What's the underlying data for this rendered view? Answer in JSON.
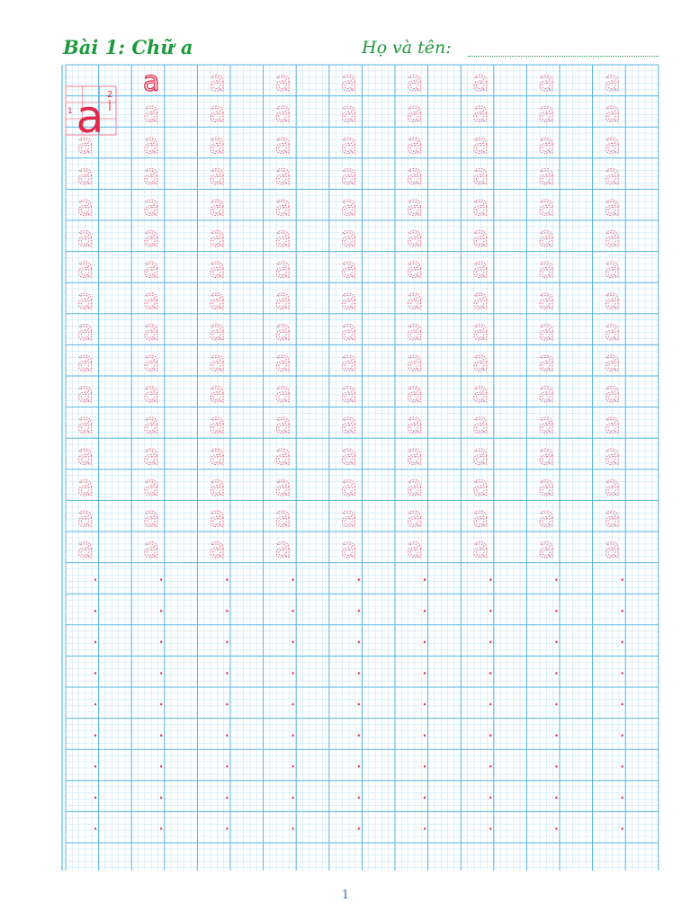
{
  "header": {
    "title": "Bài 1: Chữ a",
    "name_label": "Họ và tên:"
  },
  "worksheet": {
    "letter": "a",
    "model": {
      "letter": "a",
      "stroke_1": "1",
      "stroke_2": "2"
    },
    "letter_rows": 16,
    "dot_rows": 9,
    "columns": 9,
    "colors": {
      "grid_major": "#5ab4e0",
      "grid_minor": "#cfe9f6",
      "letter": "#e0284a",
      "trace": "#e86a84",
      "title": "#1f9a3e"
    }
  },
  "footer": {
    "page_number": "1"
  }
}
